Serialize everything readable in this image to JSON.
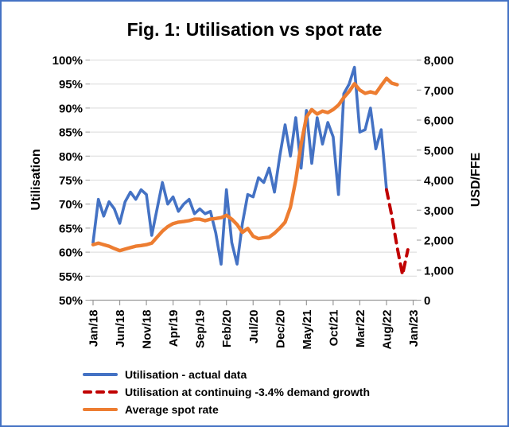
{
  "window": {
    "background": "#FFFFFF",
    "border_color": "#4472C4"
  },
  "chart_data": {
    "type": "line",
    "title": "Fig. 1: Utilisation vs spot rate",
    "grid": "horizontal",
    "legend_position": "bottom-left",
    "left_axis": {
      "label": "Utilisation",
      "min": 50,
      "max": 100,
      "step": 5,
      "unit": "%",
      "tick_labels": [
        "100%",
        "95%",
        "90%",
        "85%",
        "80%",
        "75%",
        "70%",
        "65%",
        "60%",
        "55%",
        "50%"
      ]
    },
    "right_axis": {
      "label": "USD/FFE",
      "min": 0,
      "max": 8000,
      "step": 1000,
      "tick_labels": [
        "8,000",
        "7,000",
        "6,000",
        "5,000",
        "4,000",
        "3,000",
        "2,000",
        "1,000",
        "0"
      ]
    },
    "x_axis": {
      "start": "Jan/18",
      "end": "Jan/23",
      "months_total": 60,
      "tick_interval_months": 5,
      "tick_labels": [
        "Jan/18",
        "Jun/18",
        "Nov/18",
        "Apr/19",
        "Sep/19",
        "Feb/20",
        "Jul/20",
        "Dec/20",
        "May/21",
        "Oct/21",
        "Mar/22",
        "Aug/22",
        "Jan/23"
      ]
    },
    "series": [
      {
        "name": "Utilisation - actual data",
        "color": "#4472C4",
        "style": "solid",
        "axis": "left",
        "unit": "%",
        "start_month_index": 0,
        "values": [
          62,
          71,
          67.5,
          70.5,
          69,
          66,
          70.5,
          72.5,
          71,
          73,
          72,
          63.5,
          69,
          74.5,
          70,
          71.5,
          68.5,
          70,
          71,
          68,
          69,
          68,
          68.5,
          64,
          57.5,
          73,
          62,
          57.5,
          66,
          72,
          71.5,
          75.5,
          74.5,
          77.5,
          72.5,
          80,
          86.5,
          80,
          88,
          77.5,
          89.5,
          78.5,
          88,
          82.5,
          87,
          84,
          72,
          93,
          95,
          98.5,
          85,
          85.5,
          90,
          81.5,
          85.5,
          73
        ]
      },
      {
        "name": "Utilisation at continuing -3.4% demand growth",
        "color": "#C00000",
        "style": "dashed",
        "axis": "left",
        "unit": "%",
        "start_month_index": 55,
        "values": [
          73,
          67.5,
          61,
          55.3,
          60.5
        ]
      },
      {
        "name": "Average spot rate",
        "color": "#ED7D31",
        "style": "solid",
        "axis": "right",
        "unit": "USD/FFE",
        "start_month_index": 0,
        "values": [
          1850,
          1900,
          1850,
          1800,
          1720,
          1650,
          1700,
          1750,
          1800,
          1820,
          1850,
          1900,
          2100,
          2300,
          2450,
          2550,
          2600,
          2620,
          2650,
          2700,
          2700,
          2650,
          2700,
          2720,
          2750,
          2830,
          2700,
          2520,
          2260,
          2390,
          2130,
          2050,
          2080,
          2100,
          2230,
          2400,
          2600,
          3100,
          4000,
          5200,
          6100,
          6350,
          6200,
          6300,
          6250,
          6350,
          6500,
          6750,
          6950,
          7210,
          7000,
          6890,
          6940,
          6890,
          7150,
          7390,
          7230,
          7180
        ]
      }
    ]
  }
}
